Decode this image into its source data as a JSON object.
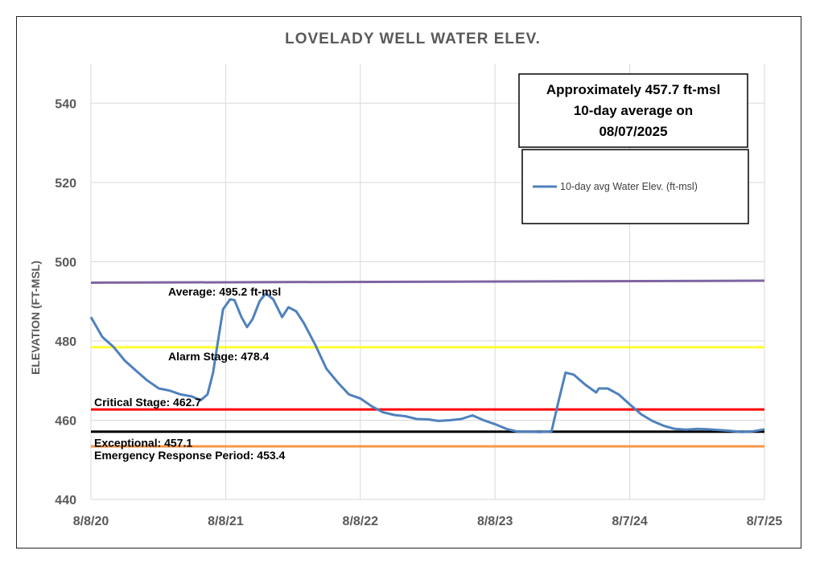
{
  "chart_data": {
    "type": "line",
    "title": "LOVELADY WELL WATER ELEV.",
    "ylabel": "ELEVATION (FT-MSL)",
    "xlabel": "",
    "ylim": [
      440,
      550
    ],
    "yticks": [
      440,
      460,
      480,
      500,
      520,
      540
    ],
    "xlim": [
      "2020-08-08",
      "2025-08-07"
    ],
    "xticks": [
      {
        "date": "2020-08-08",
        "label": "8/8/20"
      },
      {
        "date": "2021-08-08",
        "label": "8/8/21"
      },
      {
        "date": "2022-08-08",
        "label": "8/8/22"
      },
      {
        "date": "2023-08-08",
        "label": "8/8/23"
      },
      {
        "date": "2024-08-07",
        "label": "8/7/24"
      },
      {
        "date": "2025-08-07",
        "label": "8/7/25"
      }
    ],
    "grid": true,
    "legend": {
      "position": "top-right",
      "entries": [
        "10-day avg Water Elev. (ft-msl)"
      ]
    },
    "annotation": {
      "lines": [
        "Approximately 457.7 ft-msl",
        "10-day average on",
        "08/07/2025"
      ]
    },
    "reference_lines": [
      {
        "label": "Average: 495.2 ft-msl",
        "value_start": 494.7,
        "value_end": 495.2,
        "color": "#8064a2"
      },
      {
        "label": "Alarm Stage: 478.4",
        "value": 478.4,
        "color": "#ffff33"
      },
      {
        "label": "Critical Stage: 462.7",
        "value": 462.7,
        "color": "#ff0000"
      },
      {
        "label": "Exceptional: 457.1",
        "value": 457.1,
        "color": "#000000"
      },
      {
        "label": "Emergency Response Period: 453.4",
        "value": 453.4,
        "color": "#f79646"
      }
    ],
    "series": [
      {
        "name": "10-day avg Water Elev. (ft-msl)",
        "color": "#4f81bd",
        "points": [
          {
            "x": "2020-08-08",
            "y": 486.0
          },
          {
            "x": "2020-09-08",
            "y": 481.0
          },
          {
            "x": "2020-10-08",
            "y": 478.5
          },
          {
            "x": "2020-11-08",
            "y": 475.0
          },
          {
            "x": "2020-12-08",
            "y": 472.5
          },
          {
            "x": "2021-01-08",
            "y": 470.0
          },
          {
            "x": "2021-02-08",
            "y": 468.0
          },
          {
            "x": "2021-03-08",
            "y": 467.5
          },
          {
            "x": "2021-04-08",
            "y": 466.5
          },
          {
            "x": "2021-05-08",
            "y": 466.0
          },
          {
            "x": "2021-06-01",
            "y": 465.0
          },
          {
            "x": "2021-06-20",
            "y": 466.5
          },
          {
            "x": "2021-07-05",
            "y": 472.0
          },
          {
            "x": "2021-07-20",
            "y": 481.0
          },
          {
            "x": "2021-08-01",
            "y": 488.0
          },
          {
            "x": "2021-08-20",
            "y": 490.5
          },
          {
            "x": "2021-09-01",
            "y": 490.3
          },
          {
            "x": "2021-09-20",
            "y": 486.0
          },
          {
            "x": "2021-10-05",
            "y": 483.5
          },
          {
            "x": "2021-10-20",
            "y": 485.5
          },
          {
            "x": "2021-11-08",
            "y": 490.0
          },
          {
            "x": "2021-11-25",
            "y": 492.0
          },
          {
            "x": "2021-12-15",
            "y": 490.5
          },
          {
            "x": "2022-01-08",
            "y": 486.0
          },
          {
            "x": "2022-01-25",
            "y": 488.5
          },
          {
            "x": "2022-02-15",
            "y": 487.5
          },
          {
            "x": "2022-03-08",
            "y": 484.5
          },
          {
            "x": "2022-04-08",
            "y": 479.0
          },
          {
            "x": "2022-05-08",
            "y": 473.0
          },
          {
            "x": "2022-06-08",
            "y": 469.5
          },
          {
            "x": "2022-07-08",
            "y": 466.5
          },
          {
            "x": "2022-08-08",
            "y": 465.5
          },
          {
            "x": "2022-09-08",
            "y": 463.5
          },
          {
            "x": "2022-10-08",
            "y": 462.0
          },
          {
            "x": "2022-11-08",
            "y": 461.3
          },
          {
            "x": "2022-12-08",
            "y": 461.0
          },
          {
            "x": "2023-01-08",
            "y": 460.3
          },
          {
            "x": "2023-02-08",
            "y": 460.2
          },
          {
            "x": "2023-03-08",
            "y": 459.8
          },
          {
            "x": "2023-04-08",
            "y": 460.0
          },
          {
            "x": "2023-05-08",
            "y": 460.3
          },
          {
            "x": "2023-06-08",
            "y": 461.2
          },
          {
            "x": "2023-07-08",
            "y": 460.0
          },
          {
            "x": "2023-08-08",
            "y": 459.0
          },
          {
            "x": "2023-09-08",
            "y": 457.8
          },
          {
            "x": "2023-10-08",
            "y": 457.1
          },
          {
            "x": "2023-11-08",
            "y": 457.1
          },
          {
            "x": "2023-12-08",
            "y": 457.0
          },
          {
            "x": "2024-01-08",
            "y": 457.2
          },
          {
            "x": "2024-01-25",
            "y": 464.0
          },
          {
            "x": "2024-02-15",
            "y": 472.0
          },
          {
            "x": "2024-03-08",
            "y": 471.5
          },
          {
            "x": "2024-04-08",
            "y": 469.0
          },
          {
            "x": "2024-05-08",
            "y": 467.0
          },
          {
            "x": "2024-05-15",
            "y": 468.0
          },
          {
            "x": "2024-06-08",
            "y": 468.0
          },
          {
            "x": "2024-07-08",
            "y": 466.5
          },
          {
            "x": "2024-08-07",
            "y": 464.0
          },
          {
            "x": "2024-09-07",
            "y": 461.5
          },
          {
            "x": "2024-10-07",
            "y": 459.8
          },
          {
            "x": "2024-11-07",
            "y": 458.6
          },
          {
            "x": "2024-12-07",
            "y": 457.8
          },
          {
            "x": "2025-01-07",
            "y": 457.6
          },
          {
            "x": "2025-02-07",
            "y": 457.8
          },
          {
            "x": "2025-03-07",
            "y": 457.7
          },
          {
            "x": "2025-04-07",
            "y": 457.5
          },
          {
            "x": "2025-05-07",
            "y": 457.3
          },
          {
            "x": "2025-06-07",
            "y": 457.0
          },
          {
            "x": "2025-07-07",
            "y": 457.2
          },
          {
            "x": "2025-08-07",
            "y": 457.7
          }
        ]
      }
    ]
  }
}
